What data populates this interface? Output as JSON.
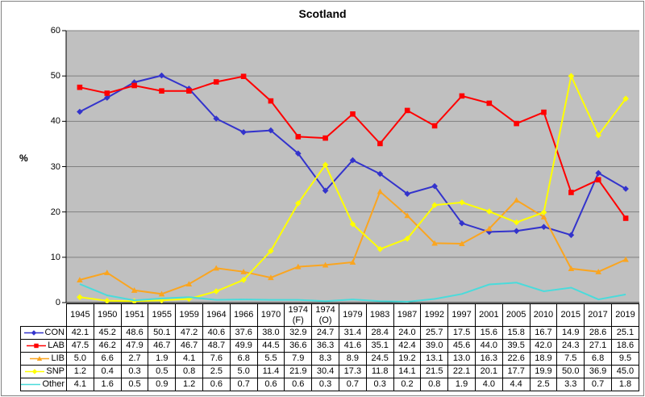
{
  "chart_data": {
    "type": "line",
    "title": "Scotland",
    "ylabel": "%",
    "ylim": [
      0,
      60
    ],
    "ytick_step": 10,
    "grid": true,
    "legend_position": "table-left-column",
    "plot_bg": "#c0c0c0",
    "grid_color": "#808080",
    "axis_color": "#000000",
    "categories": [
      "1945",
      "1950",
      "1951",
      "1955",
      "1959",
      "1964",
      "1966",
      "1970",
      "1974 (F)",
      "1974 (O)",
      "1979",
      "1983",
      "1987",
      "1992",
      "1997",
      "2001",
      "2005",
      "2010",
      "2015",
      "2017",
      "2019"
    ],
    "series": [
      {
        "name": "CON",
        "color": "#3333cc",
        "marker": "diamond",
        "values": [
          42.1,
          45.2,
          48.6,
          50.1,
          47.2,
          40.6,
          37.6,
          38.0,
          32.9,
          24.7,
          31.4,
          28.4,
          24.0,
          25.7,
          17.5,
          15.6,
          15.8,
          16.7,
          14.9,
          28.6,
          25.1
        ]
      },
      {
        "name": "LAB",
        "color": "#ff0000",
        "marker": "square",
        "values": [
          47.5,
          46.2,
          47.9,
          46.7,
          46.7,
          48.7,
          49.9,
          44.5,
          36.6,
          36.3,
          41.6,
          35.1,
          42.4,
          39.0,
          45.6,
          44.0,
          39.5,
          42.0,
          24.3,
          27.1,
          18.6
        ]
      },
      {
        "name": "LIB",
        "color": "#faa520",
        "marker": "triangle",
        "values": [
          5.0,
          6.6,
          2.7,
          1.9,
          4.1,
          7.6,
          6.8,
          5.5,
          7.9,
          8.3,
          8.9,
          24.5,
          19.2,
          13.1,
          13.0,
          16.3,
          22.6,
          18.9,
          7.5,
          6.8,
          9.5
        ]
      },
      {
        "name": "SNP",
        "color": "#ffff00",
        "marker": "diamond",
        "values": [
          1.2,
          0.4,
          0.3,
          0.5,
          0.8,
          2.5,
          5.0,
          11.4,
          21.9,
          30.4,
          17.3,
          11.8,
          14.1,
          21.5,
          22.1,
          20.1,
          17.7,
          19.9,
          50.0,
          36.9,
          45.0
        ]
      },
      {
        "name": "Other",
        "color": "#4adbdb",
        "marker": "none",
        "values": [
          4.1,
          1.6,
          0.5,
          0.9,
          1.2,
          0.6,
          0.7,
          0.6,
          0.6,
          0.3,
          0.7,
          0.3,
          0.2,
          0.8,
          1.9,
          4.0,
          4.4,
          2.5,
          3.3,
          0.7,
          1.8
        ]
      }
    ]
  }
}
